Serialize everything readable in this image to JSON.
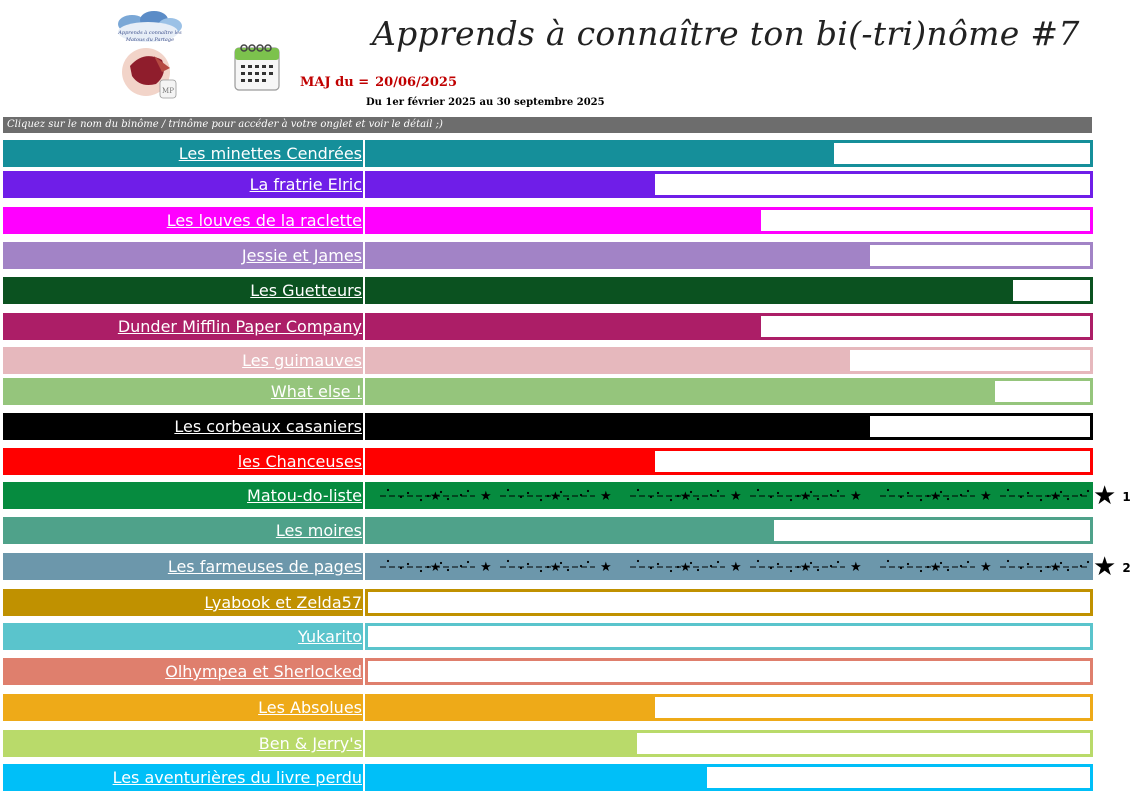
{
  "header": {
    "title": "Apprends à connaître ton bi(-tri)nôme #7",
    "maj_label": "MAJ du =",
    "maj_date": "20/06/2025",
    "period": "Du 1er février 2025 au 30 septembre 2025",
    "hint": "Cliquez sur le nom du binôme / trinôme pour accéder à votre onglet et voir le détail ;)",
    "logo_text": "Apprends à connaître les Matous du Partage"
  },
  "teams": [
    {
      "name": "Les minettes Cendrées",
      "color": "#158f9a",
      "progress": 0.645,
      "stars": false
    },
    {
      "name": "La fratrie Elric",
      "color": "#6f1ee8",
      "progress": 0.398,
      "stars": false
    },
    {
      "name": "Les louves de la raclette",
      "color": "#ff00ff",
      "progress": 0.545,
      "stars": false
    },
    {
      "name": "Jessie et James",
      "color": "#a283c6",
      "progress": 0.695,
      "stars": false
    },
    {
      "name": "Les Guetteurs",
      "color": "#0b5220",
      "progress": 0.893,
      "stars": false
    },
    {
      "name": "Dunder Mifflin Paper Company",
      "color": "#ac1e67",
      "progress": 0.545,
      "stars": false
    },
    {
      "name": "Les guimauves",
      "color": "#e6b8bd",
      "progress": 0.668,
      "stars": false
    },
    {
      "name": "What else !",
      "color": "#95c57c",
      "progress": 0.868,
      "stars": false
    },
    {
      "name": "Les corbeaux casaniers",
      "color": "#000000",
      "progress": 0.695,
      "stars": false
    },
    {
      "name": "les Chanceuses",
      "color": "#ff0000",
      "progress": 0.398,
      "stars": false
    },
    {
      "name": "Matou-do-liste",
      "color": "#068b3f",
      "progress": 1.0,
      "stars": true,
      "rank": "1"
    },
    {
      "name": "Les moires",
      "color": "#4fa28a",
      "progress": 0.562,
      "stars": false
    },
    {
      "name": "Les farmeuses de pages",
      "color": "#6c97ab",
      "progress": 1.0,
      "stars": true,
      "rank": "2"
    },
    {
      "name": "Lyabook et Zelda57",
      "color": "#c09100",
      "progress": 0.0,
      "stars": false
    },
    {
      "name": "Yukarito",
      "color": "#5ac4cc",
      "progress": 0.0,
      "stars": false
    },
    {
      "name": "Olhympea et Sherlocked",
      "color": "#df7f6d",
      "progress": 0.0,
      "stars": false
    },
    {
      "name": "Les Absolues",
      "color": "#eeaa18",
      "progress": 0.398,
      "stars": false
    },
    {
      "name": "Ben & Jerry's",
      "color": "#b9da6a",
      "progress": 0.373,
      "stars": false
    },
    {
      "name": "Les aventurières du livre perdu",
      "color": "#00bff8",
      "progress": 0.47,
      "stars": false
    }
  ]
}
